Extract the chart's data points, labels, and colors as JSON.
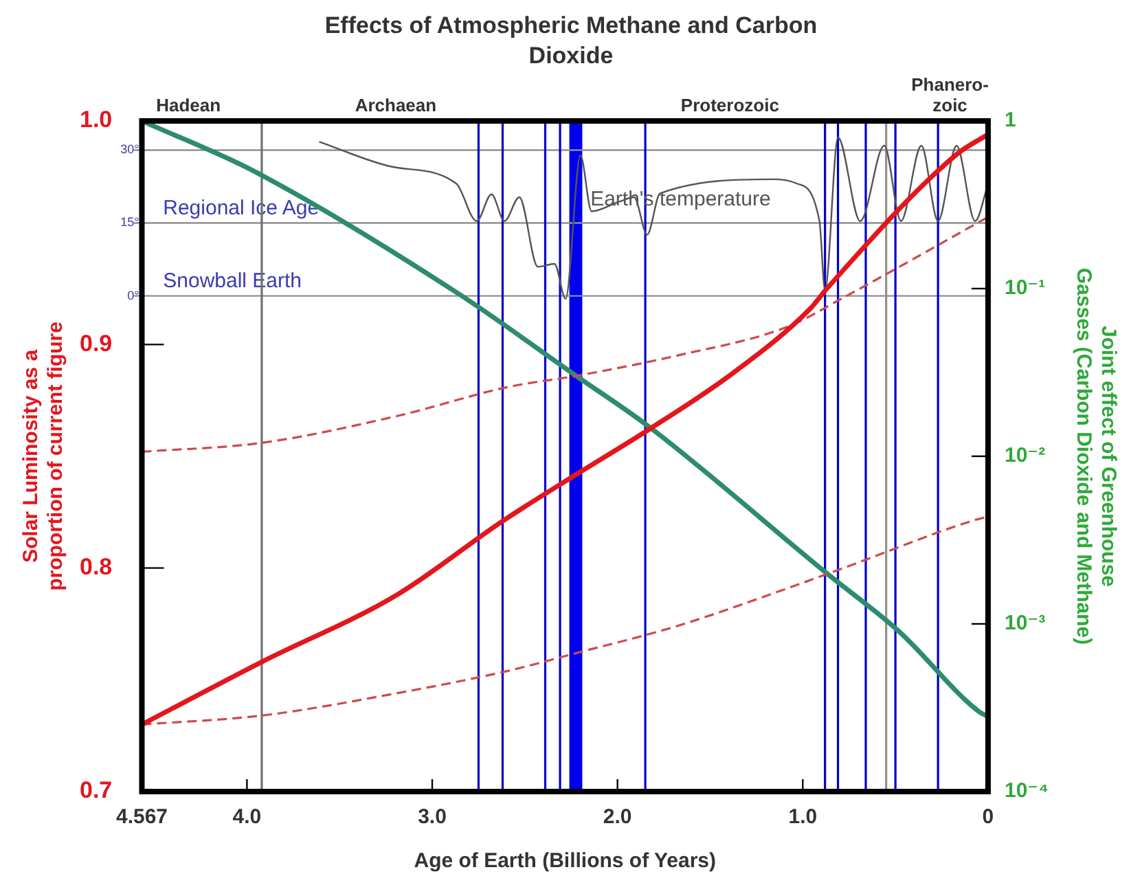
{
  "chart_data": {
    "type": "line",
    "title": "Effects of Atmospheric Methane and Carbon Dioxide",
    "xlabel": "Age of Earth (Billions of Years)",
    "ylabel": "Solar Luminosity as a proportion of current figure",
    "y2label": "Joint effect of Greenhouse Gasses (Carbon Dioxide and Methane)",
    "xlim": [
      4.567,
      0
    ],
    "xticks": [
      4.567,
      {
        "value": 4,
        "label": "4.0"
      },
      {
        "value": 3,
        "label": "3.0"
      },
      {
        "value": 2,
        "label": "2.0"
      },
      {
        "value": 1,
        "label": "1.0"
      },
      0
    ],
    "ylim": [
      0.7,
      1.0
    ],
    "yticks": [
      0.7,
      0.8,
      0.9,
      {
        "value": 1,
        "label": "1.0"
      }
    ],
    "y2lim": [
      0.0001,
      1
    ],
    "y2ticks": [
      {
        "value": 0.0001,
        "label": "10⁻⁴"
      },
      {
        "value": 0.001,
        "label": "10⁻³"
      },
      {
        "value": 0.01,
        "label": "10⁻²"
      },
      {
        "value": 0.1,
        "label": "10⁻¹"
      },
      1
    ],
    "y3lim": [
      -102,
      36
    ],
    "y3ticks": [
      {
        "value": 0,
        "label": "0°"
      },
      {
        "value": 15,
        "label": "15°"
      },
      {
        "value": 30,
        "label": "30°"
      }
    ],
    "log": "y2",
    "legend": false,
    "marker": "none",
    "series": [
      {
        "color": "#e3161d",
        "x": [
          4.567,
          3.92,
          3.19,
          2.62,
          2.22,
          1.83,
          1.38,
          0.96,
          0.87,
          0.17,
          0
        ],
        "values": [
          0.73,
          0.758,
          0.788,
          0.821,
          0.842,
          0.862,
          0.887,
          0.916,
          0.925,
          0.985,
          0.994
        ]
      },
      {
        "color": "#d04a4a",
        "line_style": "dashed",
        "x": [
          4.567,
          3.92,
          3.19,
          2.59,
          2.22,
          1.68,
          1.08,
          0.78,
          0
        ],
        "values": [
          0.852,
          0.856,
          0.868,
          0.881,
          0.886,
          0.895,
          0.908,
          0.921,
          0.957
        ]
      },
      {
        "color": "#d04a4a",
        "line_style": "dashed",
        "x": [
          4.567,
          3.92,
          3.19,
          2.59,
          2.22,
          1.68,
          1.08,
          0.78,
          0.09,
          0
        ],
        "values": [
          0.73,
          0.734,
          0.744,
          0.754,
          0.762,
          0.774,
          0.791,
          0.8,
          0.821,
          0.823
        ]
      },
      {
        "color": "#2e8b6f",
        "axis": "y2",
        "x": [
          4.567,
          3.96,
          2.87,
          2.22,
          1.83,
          0.87,
          0.48,
          0.05,
          0
        ],
        "values": [
          1,
          0.5,
          0.095,
          0.03,
          0.015,
          0.002,
          0.0009,
          0.0003,
          0.00028
        ]
      },
      {
        "name": "Earth's temperature",
        "color": "#555555",
        "axis": "y3",
        "x": [
          3.61,
          3.22,
          2.87,
          2.76,
          2.68,
          2.61,
          2.53,
          2.43,
          2.34,
          2.28,
          2.2,
          2.14,
          1.99,
          1.91,
          1.84,
          1.77,
          1.15,
          1.03,
          0.91,
          0.88,
          0.81,
          0.69,
          0.56,
          0.47,
          0.36,
          0.27,
          0.17,
          0.07,
          0
        ],
        "values": [
          31.7,
          26.6,
          23.1,
          15.4,
          20.9,
          15.4,
          20.3,
          6,
          6.6,
          -0.6,
          28.9,
          17.4,
          19.4,
          20.3,
          12.6,
          21.1,
          24,
          23.1,
          15.4,
          1.1,
          32.6,
          15.4,
          30.9,
          15.4,
          30.9,
          15.4,
          30.9,
          15.4,
          23
        ]
      }
    ],
    "ref_lines": [
      {
        "axis": "y3",
        "value": 30,
        "color": "#909090"
      },
      {
        "axis": "y3",
        "value": 15,
        "label": "Regional Ice Age",
        "color": "#909090"
      },
      {
        "axis": "y3",
        "value": 0,
        "label": "Snowball Earth",
        "color": "#909090"
      },
      {
        "axis": "x",
        "value": 3.92,
        "color": "#707070"
      },
      {
        "axis": "x",
        "value": 0.55,
        "color": "#909090"
      },
      {
        "axis": "x",
        "value": 2.75,
        "color": "#0000cc"
      },
      {
        "axis": "x",
        "value": 2.62,
        "color": "#0000cc"
      },
      {
        "axis": "x",
        "value": 2.39,
        "color": "#0000cc"
      },
      {
        "axis": "x",
        "value": 2.31,
        "color": "#0000cc"
      },
      {
        "axis": "x",
        "value": 1.85,
        "color": "#0000cc"
      },
      {
        "axis": "x",
        "value": 0.88,
        "color": "#0000cc"
      },
      {
        "axis": "x",
        "value": 0.81,
        "color": "#0000cc"
      },
      {
        "axis": "x",
        "value": 0.66,
        "color": "#0000cc"
      },
      {
        "axis": "x",
        "value": 0.5,
        "color": "#0000cc"
      },
      {
        "axis": "x",
        "value": 0.27,
        "color": "#0000cc"
      }
    ],
    "bands": [
      {
        "axis": "x",
        "from": 2.19,
        "to": 2.26,
        "color": "#0000ee"
      }
    ],
    "annotations": [
      "Hadean",
      "Archaean",
      "Proterozoic",
      "Phanero-zoic"
    ]
  }
}
